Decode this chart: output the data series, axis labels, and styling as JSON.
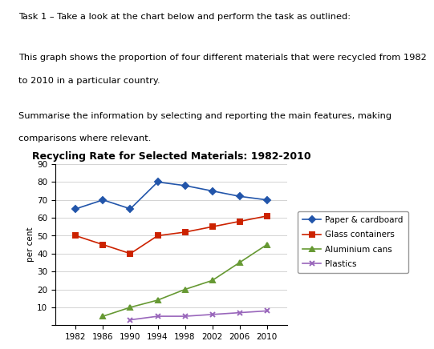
{
  "title": "Recycling Rate for Selected Materials: 1982-2010",
  "ylabel": "per cent",
  "years": [
    1982,
    1986,
    1990,
    1994,
    1998,
    2002,
    2006,
    2010
  ],
  "series": {
    "Paper & cardboard": {
      "values": [
        65,
        70,
        65,
        80,
        78,
        75,
        72,
        70
      ],
      "color": "#2255aa",
      "marker": "D",
      "linestyle": "-"
    },
    "Glass containers": {
      "values": [
        50,
        45,
        40,
        50,
        52,
        55,
        58,
        61
      ],
      "color": "#cc2200",
      "marker": "s",
      "linestyle": "-"
    },
    "Aluminium cans": {
      "values": [
        null,
        5,
        10,
        14,
        20,
        25,
        35,
        45
      ],
      "color": "#669933",
      "marker": "^",
      "linestyle": "-"
    },
    "Plastics": {
      "values": [
        null,
        null,
        3,
        5,
        5,
        6,
        7,
        8
      ],
      "color": "#9966bb",
      "marker": "x",
      "linestyle": "-"
    }
  },
  "ylim": [
    0,
    90
  ],
  "yticks": [
    0,
    10,
    20,
    30,
    40,
    50,
    60,
    70,
    80,
    90
  ],
  "background_color": "#ffffff",
  "title_fontsize": 9,
  "axis_fontsize": 7.5,
  "legend_fontsize": 7.5,
  "text_line1": "Task 1 – Take a look at the chart below and perform the task as outlined:",
  "text_line2a": "This graph shows the proportion of four different materials that were recycled from 1982",
  "text_line2b": "to 2010 in a particular country.",
  "text_line3a": "Summarise the information by selecting and reporting the main features, making",
  "text_line3b": "comparisons where relevant."
}
